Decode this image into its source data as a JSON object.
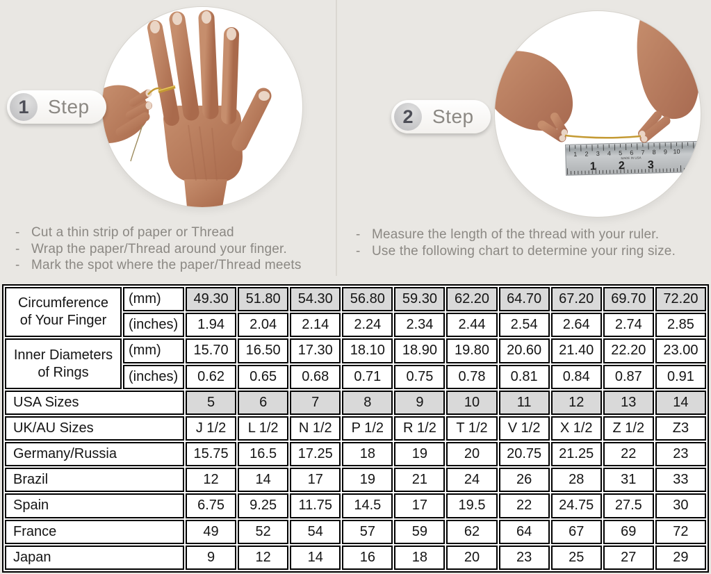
{
  "colors": {
    "bg": "#e9e7e3",
    "table_shaded": "#d9d9d9",
    "thread_gold": "#c49a33",
    "gray_text": "#8b8883"
  },
  "instruction_bullet": "-",
  "steps": [
    {
      "number": "1",
      "label": "Step",
      "photo_alt": "hand-with-thread-wrapped-around-finger",
      "instructions": [
        "Cut a thin strip of paper or Thread",
        "Wrap the paper/Thread around your finger.",
        "Mark the spot where the paper/Thread meets"
      ]
    },
    {
      "number": "2",
      "label": "Step",
      "photo_alt": "hands-measuring-thread-with-ruler",
      "instructions": [
        "Measure the length of the thread with your ruler.",
        "Use the following chart to determine your ring size."
      ]
    }
  ],
  "ruler": {
    "cm_numbers": [
      "1",
      "2",
      "3",
      "4",
      "5",
      "6",
      "7",
      "8",
      "9",
      "10"
    ],
    "inch_numbers": [
      "1",
      "2",
      "3"
    ],
    "brand_text": "MADE IN USA"
  },
  "size_chart": {
    "measure_groups": [
      {
        "label_lines": [
          "Circumference",
          "of Your Finger"
        ],
        "rows": [
          {
            "unit": "(mm)",
            "shaded": true,
            "values": [
              "49.30",
              "51.80",
              "54.30",
              "56.80",
              "59.30",
              "62.20",
              "64.70",
              "67.20",
              "69.70",
              "72.20"
            ]
          },
          {
            "unit": "(inches)",
            "shaded": false,
            "values": [
              "1.94",
              "2.04",
              "2.14",
              "2.24",
              "2.34",
              "2.44",
              "2.54",
              "2.64",
              "2.74",
              "2.85"
            ]
          }
        ]
      },
      {
        "label_lines": [
          "Inner Diameters",
          "of Rings"
        ],
        "rows": [
          {
            "unit": "(mm)",
            "shaded": false,
            "values": [
              "15.70",
              "16.50",
              "17.30",
              "18.10",
              "18.90",
              "19.80",
              "20.60",
              "21.40",
              "22.20",
              "23.00"
            ]
          },
          {
            "unit": "(inches)",
            "shaded": false,
            "values": [
              "0.62",
              "0.65",
              "0.68",
              "0.71",
              "0.75",
              "0.78",
              "0.81",
              "0.84",
              "0.87",
              "0.91"
            ]
          }
        ]
      }
    ],
    "size_rows": [
      {
        "label": "USA Sizes",
        "shaded": true,
        "values": [
          "5",
          "6",
          "7",
          "8",
          "9",
          "10",
          "11",
          "12",
          "13",
          "14"
        ]
      },
      {
        "label": "UK/AU Sizes",
        "shaded": false,
        "values": [
          "J 1/2",
          "L 1/2",
          "N 1/2",
          "P 1/2",
          "R 1/2",
          "T 1/2",
          "V 1/2",
          "X 1/2",
          "Z 1/2",
          "Z3"
        ]
      },
      {
        "label": "Germany/Russia",
        "shaded": false,
        "values": [
          "15.75",
          "16.5",
          "17.25",
          "18",
          "19",
          "20",
          "20.75",
          "21.25",
          "22",
          "23"
        ]
      },
      {
        "label": "Brazil",
        "shaded": false,
        "values": [
          "12",
          "14",
          "17",
          "19",
          "21",
          "24",
          "26",
          "28",
          "31",
          "33"
        ]
      },
      {
        "label": "Spain",
        "shaded": false,
        "values": [
          "6.75",
          "9.25",
          "11.75",
          "14.5",
          "17",
          "19.5",
          "22",
          "24.75",
          "27.5",
          "30"
        ]
      },
      {
        "label": "France",
        "shaded": false,
        "values": [
          "49",
          "52",
          "54",
          "57",
          "59",
          "62",
          "64",
          "67",
          "69",
          "72"
        ]
      },
      {
        "label": "Japan",
        "shaded": false,
        "values": [
          "9",
          "12",
          "14",
          "16",
          "18",
          "20",
          "23",
          "25",
          "27",
          "29"
        ]
      }
    ]
  }
}
